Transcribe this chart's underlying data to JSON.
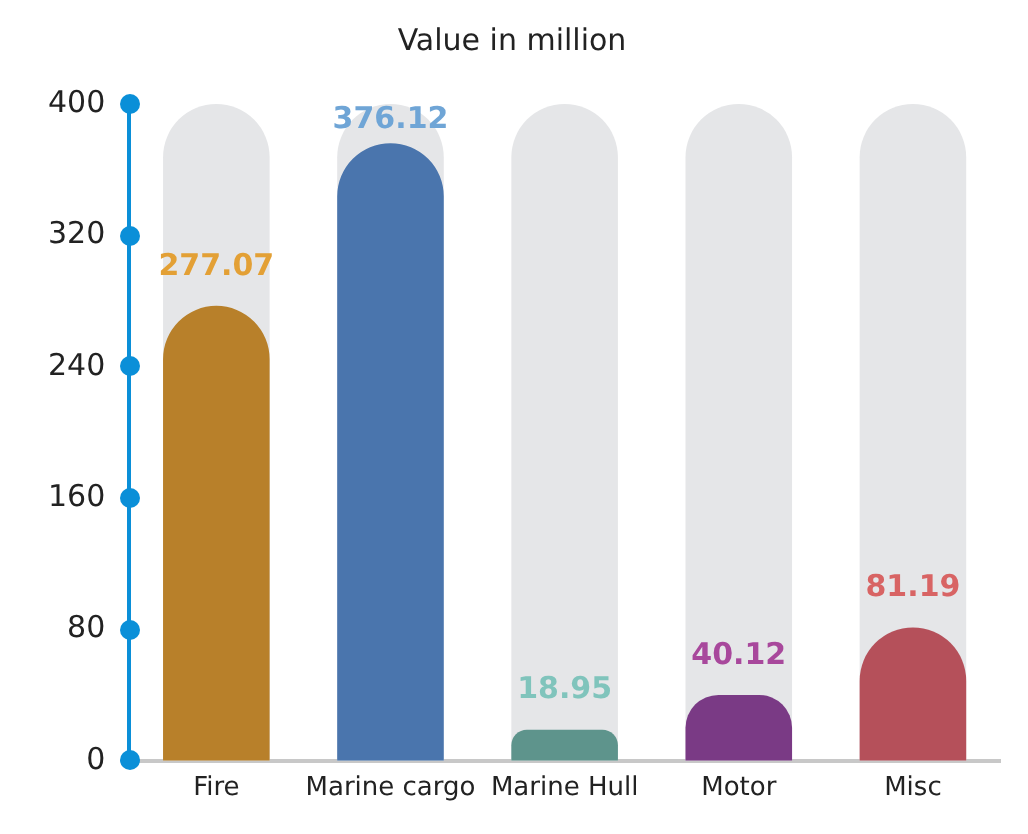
{
  "chart_data": {
    "type": "bar",
    "title": "Value in million",
    "categories": [
      "Fire",
      "Marine cargo",
      "Marine Hull",
      "Motor",
      "Misc"
    ],
    "values": [
      277.07,
      376.12,
      18.95,
      40.12,
      81.19
    ],
    "colors": [
      "#b8802a",
      "#4a75ad",
      "#5e948c",
      "#7a3a85",
      "#b5505a"
    ],
    "ylim": [
      0,
      400
    ],
    "yticks": [
      0,
      80,
      160,
      240,
      320,
      400
    ],
    "grid": false,
    "legend": false,
    "data_labels": true
  }
}
